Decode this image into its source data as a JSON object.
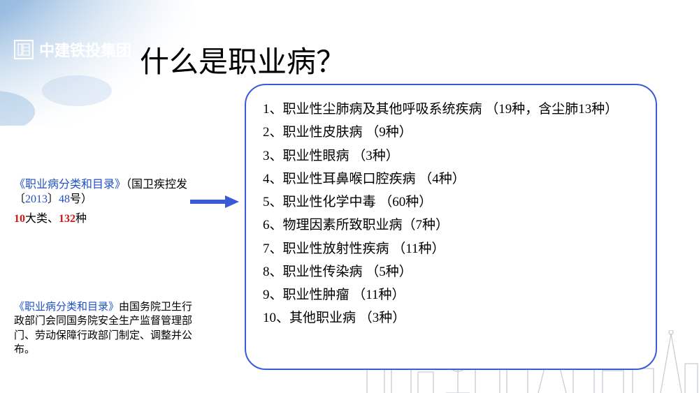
{
  "logo": {
    "text": "中建铁投集团"
  },
  "title": "什么是职业病？",
  "reference": {
    "line1_blue_a": "《职业病分类和目录》",
    "line1_black_a": "（国卫疾控发〔",
    "line1_blue_b": "2013",
    "line1_black_b": "〕",
    "line1_blue_c": "48",
    "line1_black_c": "号）",
    "line2_red_a": "10",
    "line2_black_a": "大类、",
    "line2_red_b": "132",
    "line2_black_b": "种"
  },
  "footnote": {
    "blue": "《职业病分类和目录》",
    "black": "由国务院卫生行政部门会同国务院安全生产监督管理部门、劳动保障行政部门制定、调整并公布。"
  },
  "categories": [
    "1、职业性尘肺病及其他呼吸系统疾病 （19种，含尘肺13种）",
    "2、职业性皮肤病 （9种）",
    "3、职业性眼病 （3种）",
    "4、职业性耳鼻喉口腔疾病 （4种）",
    "5、职业性化学中毒 （60种）",
    "6、物理因素所致职业病（7种）",
    "7、职业性放射性疾病 （11种）",
    "8、职业性传染病 （5种）",
    "9、职业性肿瘤 （11种）",
    "10、其他职业病 （3种）"
  ],
  "colors": {
    "title": "#000000",
    "blue_text": "#1f4fc4",
    "red_text": "#d01818",
    "box_border": "#3a5bd8",
    "arrow_fill": "#3a5bd8",
    "wash": "#7aa8d8",
    "skyline": "#9aa6b2"
  }
}
